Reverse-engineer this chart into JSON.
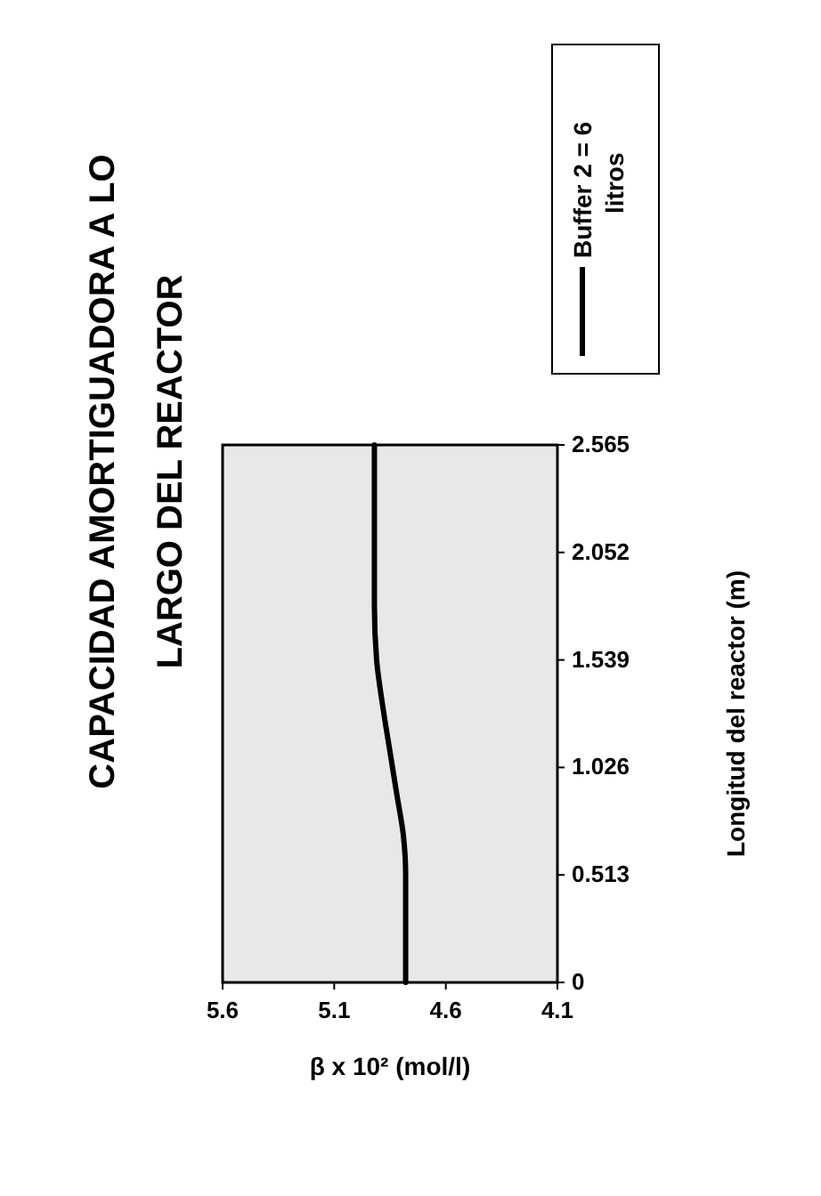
{
  "chart_data": {
    "type": "line",
    "title": "CAPACIDAD AMORTIGUADORA A LO LARGO DEL REACTOR",
    "xlabel": "β x 10² (mol/l)",
    "ylabel": "Longitud del reactor (m)",
    "x": [
      4.78,
      4.78,
      4.78,
      4.79,
      4.82,
      4.85,
      4.88,
      4.91,
      4.92,
      4.92,
      4.92,
      4.92
    ],
    "series": [
      {
        "name": "Buffer 2 = 6 litros",
        "color": "#000000",
        "values": [
          0,
          0.25,
          0.513,
          0.7,
          0.9,
          1.1,
          1.3,
          1.539,
          1.8,
          2.052,
          2.3,
          2.565
        ]
      }
    ],
    "xlim": [
      5.6,
      4.1
    ],
    "xticks": [
      5.6,
      5.1,
      4.6,
      4.1
    ],
    "ylim": [
      0,
      2.565
    ],
    "yticks": [
      0,
      0.513,
      1.026,
      1.539,
      2.052,
      2.565
    ],
    "grid": false,
    "legend": "top right",
    "marker": "none",
    "line_style": "solid"
  }
}
